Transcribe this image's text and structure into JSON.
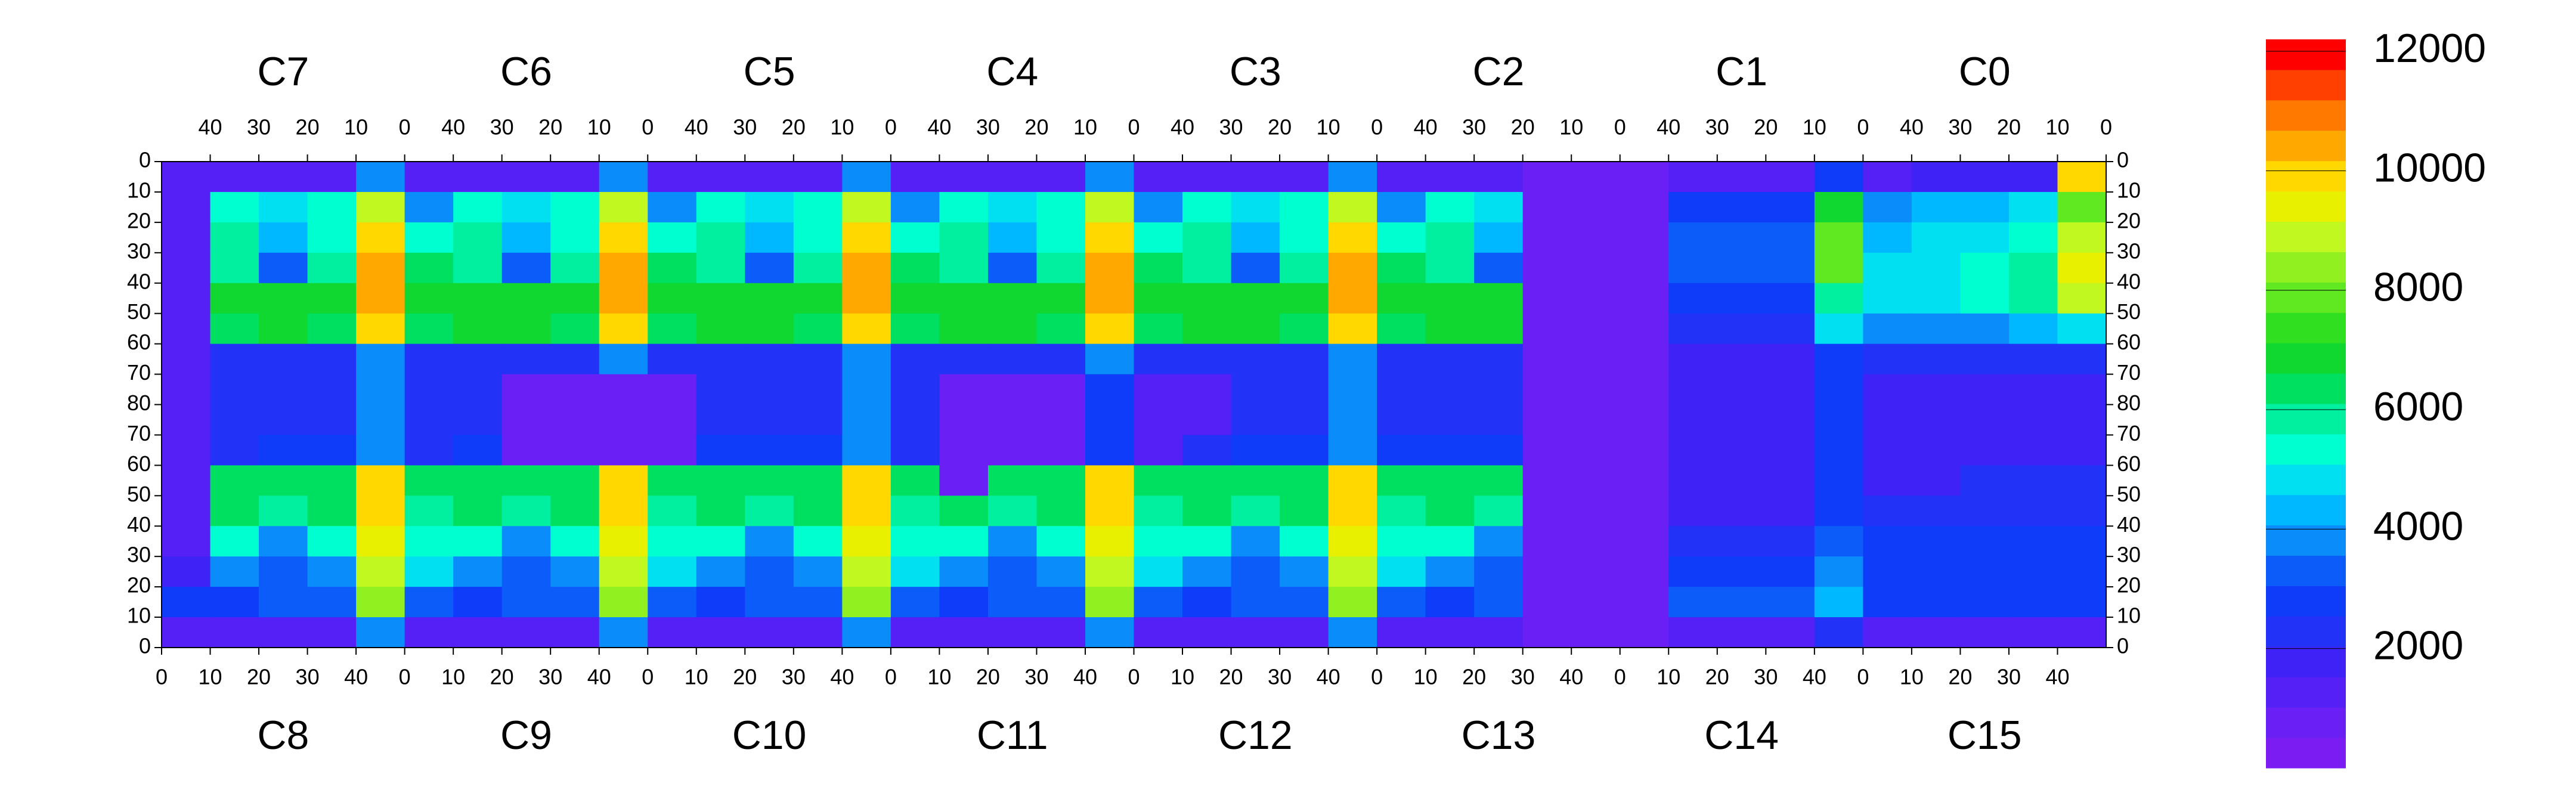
{
  "chart_data": {
    "type": "heatmap",
    "top_chambers": [
      "C7",
      "C6",
      "C5",
      "C4",
      "C3",
      "C2",
      "C1",
      "C0"
    ],
    "bottom_chambers": [
      "C8",
      "C9",
      "C10",
      "C11",
      "C12",
      "C13",
      "C14",
      "C15"
    ],
    "chamber_xlim_top": [
      50,
      0
    ],
    "chamber_xlim_bottom": [
      0,
      50
    ],
    "chamber_xticks_top": [
      40,
      30,
      20,
      10,
      0
    ],
    "chamber_xticks_bottom": [
      0,
      10,
      20,
      30,
      40
    ],
    "xlim": [
      0,
      400
    ],
    "ylim": [
      0,
      160
    ],
    "yticks": [
      0,
      10,
      20,
      30,
      40,
      50,
      60,
      70,
      80,
      {
        "value": 90,
        "label": "70"
      },
      {
        "value": 100,
        "label": "60"
      },
      {
        "value": 110,
        "label": "50"
      },
      {
        "value": 120,
        "label": "40"
      },
      {
        "value": 130,
        "label": "30"
      },
      {
        "value": 140,
        "label": "20"
      },
      {
        "value": 150,
        "label": "10"
      },
      {
        "value": 160,
        "label": "0"
      }
    ],
    "zlim": [
      0,
      12200
    ],
    "zticks": [
      2000,
      4000,
      6000,
      8000,
      10000,
      12000
    ],
    "colorscale": [
      "#7b1cf2",
      "#6a1ff4",
      "#5520f5",
      "#3e22f6",
      "#2233f7",
      "#0e3cf9",
      "#0c5cfa",
      "#0a8cfb",
      "#00b8ff",
      "#00e0f0",
      "#00ffd0",
      "#00f0a0",
      "#00e060",
      "#10d830",
      "#30e020",
      "#60e820",
      "#90f020",
      "#c0f820",
      "#e8f000",
      "#ffd800",
      "#ffa800",
      "#ff7800",
      "#ff4000",
      "#ff0000"
    ],
    "z": [
      [
        1500,
        1500,
        1500,
        1500,
        4000,
        1500,
        1500,
        1500,
        1500,
        4000,
        1500,
        1500,
        1500,
        1500,
        4000,
        1500,
        1500,
        1500,
        1500,
        4000,
        1500,
        1500,
        1500,
        1500,
        4000,
        1500,
        1500,
        1500,
        600,
        600,
        600,
        1500,
        1500,
        1500,
        3000,
        1500,
        2000,
        2000,
        2000,
        10000
      ],
      [
        1500,
        5500,
        5000,
        5500,
        9000,
        4000,
        5500,
        5000,
        5500,
        9000,
        4000,
        5500,
        5000,
        5500,
        9000,
        4000,
        5500,
        5000,
        5500,
        9000,
        4000,
        5500,
        5000,
        5500,
        9000,
        4000,
        5500,
        5000,
        600,
        600,
        600,
        3000,
        3000,
        3000,
        7000,
        4000,
        4500,
        4500,
        5000,
        8000
      ],
      [
        1500,
        6000,
        4500,
        5500,
        10000,
        5500,
        6000,
        4500,
        5500,
        10000,
        5500,
        6000,
        4500,
        5500,
        10000,
        5500,
        6000,
        4500,
        5500,
        10000,
        5500,
        6000,
        4500,
        5500,
        10000,
        5500,
        6000,
        4500,
        600,
        600,
        600,
        3500,
        3500,
        3500,
        8000,
        4500,
        5000,
        5000,
        5500,
        9000
      ],
      [
        1500,
        6000,
        3500,
        6000,
        10500,
        6500,
        6000,
        3500,
        6000,
        10500,
        6500,
        6000,
        3500,
        6000,
        10500,
        6500,
        6000,
        3500,
        6000,
        10500,
        6500,
        6000,
        3500,
        6000,
        10500,
        6500,
        6000,
        3500,
        600,
        600,
        600,
        3500,
        3500,
        3500,
        8000,
        5000,
        5000,
        5500,
        6000,
        9500
      ],
      [
        1500,
        7000,
        7000,
        7000,
        10500,
        7000,
        7000,
        7000,
        7000,
        10500,
        7000,
        7000,
        7000,
        7000,
        10500,
        7000,
        7000,
        7000,
        7000,
        10500,
        7000,
        7000,
        7000,
        7000,
        10500,
        7000,
        7000,
        7000,
        600,
        600,
        600,
        3000,
        3000,
        3000,
        6000,
        5000,
        5000,
        5500,
        6000,
        9000
      ],
      [
        1500,
        6500,
        7000,
        6500,
        10000,
        6500,
        7000,
        7000,
        6500,
        10000,
        6500,
        7000,
        7000,
        6500,
        10000,
        6500,
        7000,
        7000,
        6500,
        10000,
        6500,
        7000,
        7000,
        6500,
        10000,
        6500,
        7000,
        7000,
        600,
        600,
        600,
        2500,
        2500,
        2500,
        5000,
        4000,
        4000,
        4000,
        4500,
        5000
      ],
      [
        1500,
        2500,
        2500,
        2500,
        4000,
        2500,
        2500,
        2500,
        2500,
        4000,
        2500,
        2500,
        2500,
        2500,
        4000,
        2500,
        2500,
        2500,
        2500,
        4000,
        2500,
        2500,
        2500,
        2500,
        4000,
        2500,
        2500,
        2500,
        600,
        600,
        600,
        2000,
        2000,
        2000,
        3000,
        2500,
        2500,
        2500,
        2500,
        2500
      ],
      [
        1500,
        2500,
        2500,
        2500,
        4000,
        2500,
        2500,
        800,
        800,
        800,
        800,
        2500,
        2500,
        2500,
        4000,
        2500,
        1000,
        1000,
        1000,
        3000,
        1200,
        1200,
        2500,
        2500,
        4000,
        2500,
        2500,
        2500,
        600,
        600,
        600,
        2000,
        2000,
        2000,
        3000,
        2000,
        2000,
        2000,
        2000,
        2000
      ],
      [
        1500,
        2500,
        2500,
        2500,
        4000,
        2500,
        2500,
        800,
        800,
        800,
        800,
        2500,
        2500,
        2500,
        4000,
        2500,
        1000,
        1000,
        1000,
        3000,
        1200,
        1200,
        2500,
        2500,
        4000,
        2500,
        2500,
        2500,
        600,
        600,
        600,
        2000,
        2000,
        2000,
        3000,
        2000,
        2000,
        2000,
        2000,
        2000
      ],
      [
        1500,
        2500,
        3000,
        3000,
        4000,
        2500,
        3000,
        800,
        800,
        800,
        800,
        3000,
        3000,
        3000,
        4000,
        2500,
        1000,
        1000,
        1000,
        3000,
        1200,
        2500,
        3000,
        3000,
        4000,
        3000,
        3000,
        3000,
        600,
        600,
        600,
        2000,
        2000,
        2000,
        3000,
        2000,
        2000,
        2000,
        2000,
        2000
      ],
      [
        1500,
        6500,
        6500,
        6500,
        10000,
        6500,
        6500,
        6500,
        6500,
        10000,
        6500,
        6500,
        6500,
        6500,
        10000,
        6500,
        1000,
        6500,
        6500,
        10000,
        6500,
        6500,
        6500,
        6500,
        10000,
        6500,
        6500,
        6500,
        600,
        600,
        600,
        2000,
        2000,
        2000,
        3000,
        2000,
        2000,
        2500,
        2500,
        2500
      ],
      [
        1500,
        6500,
        6000,
        6500,
        10000,
        6000,
        6500,
        6000,
        6500,
        10000,
        6000,
        6500,
        6000,
        6500,
        10000,
        6000,
        6500,
        6000,
        6500,
        10000,
        6000,
        6500,
        6000,
        6500,
        10000,
        6000,
        6500,
        6000,
        600,
        600,
        600,
        2000,
        2000,
        2000,
        3000,
        2500,
        2500,
        2500,
        2500,
        2500
      ],
      [
        1500,
        5500,
        4000,
        5500,
        9500,
        5500,
        5500,
        4000,
        5500,
        9500,
        5500,
        5500,
        4000,
        5500,
        9500,
        5500,
        5500,
        4000,
        5500,
        9500,
        5500,
        5500,
        4000,
        5500,
        9500,
        5500,
        5500,
        4000,
        600,
        600,
        600,
        2500,
        2500,
        2500,
        3500,
        3000,
        3000,
        3000,
        3000,
        3000
      ],
      [
        2000,
        4000,
        3500,
        4000,
        9000,
        5000,
        4000,
        3500,
        4000,
        9000,
        5000,
        4000,
        3500,
        4000,
        9000,
        5000,
        4000,
        3500,
        4000,
        9000,
        5000,
        4000,
        3500,
        4000,
        9000,
        5000,
        4000,
        3500,
        600,
        600,
        600,
        3000,
        3000,
        3000,
        4000,
        3000,
        3000,
        3000,
        3000,
        3000
      ],
      [
        3000,
        3000,
        3500,
        3500,
        8500,
        3500,
        3000,
        3500,
        3500,
        8500,
        3500,
        3000,
        3500,
        3500,
        8500,
        3500,
        3000,
        3500,
        3500,
        8500,
        3500,
        3000,
        3500,
        3500,
        8500,
        3500,
        3000,
        3500,
        600,
        600,
        600,
        3500,
        3500,
        3500,
        4500,
        3000,
        3000,
        3000,
        3000,
        3000
      ],
      [
        1500,
        1500,
        1500,
        1500,
        4000,
        1500,
        1500,
        1500,
        1500,
        4000,
        1500,
        1500,
        1500,
        1500,
        4000,
        1500,
        1500,
        1500,
        1500,
        4000,
        1500,
        1500,
        1500,
        1500,
        4000,
        1500,
        1500,
        1500,
        600,
        600,
        600,
        1500,
        1500,
        1500,
        2500,
        1500,
        1500,
        1500,
        1500,
        1500
      ]
    ]
  }
}
